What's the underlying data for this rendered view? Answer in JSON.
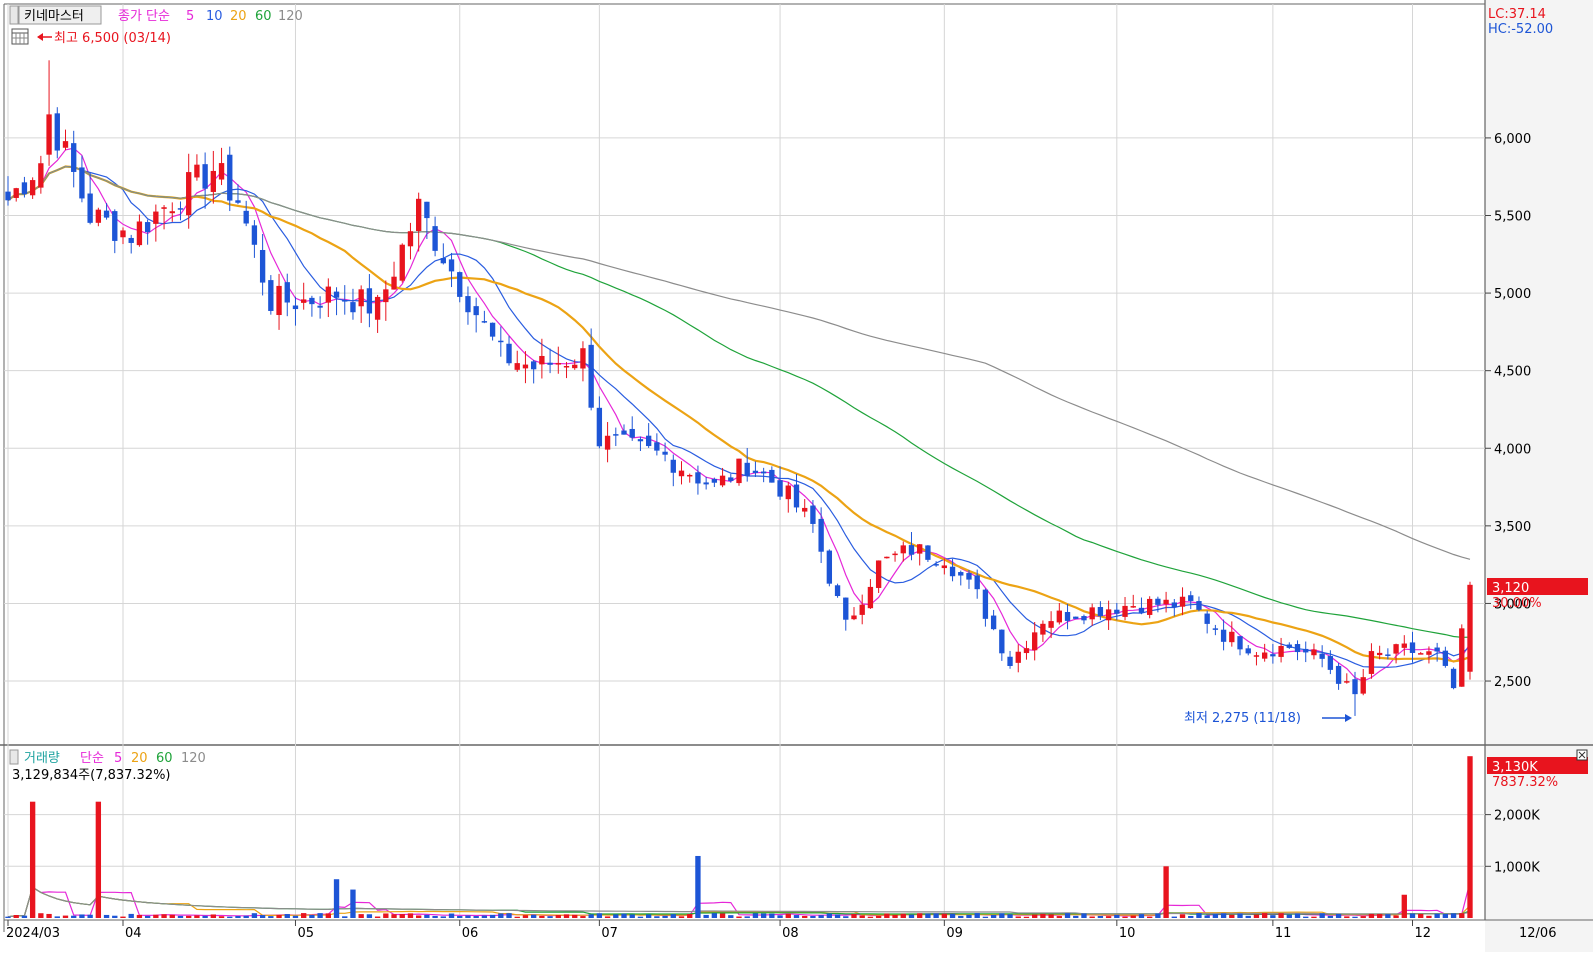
{
  "header": {
    "tab_label": "키네마스터",
    "ma_title": "종가 단순",
    "ma_periods": [
      "5",
      "10",
      "20",
      "60",
      "120"
    ],
    "lc": "LC:37.14",
    "hc": "HC:-52.00",
    "high_note": "최고 6,500 (03/14)",
    "low_note": "최저 2,275 (11/18)"
  },
  "volume_header": {
    "title": "거래량",
    "ma_title": "단순",
    "ma_periods": [
      "5",
      "20",
      "60",
      "120"
    ],
    "value_text": "3,129,834주(7,837.32%)"
  },
  "badges": {
    "price": "3,120",
    "price_pct": "30.00%",
    "volume": "3,130K",
    "volume_pct": "7837.32%"
  },
  "colors": {
    "up": "#e8141e",
    "down": "#1d55d6",
    "ma5": "#e628d8",
    "ma10": "#2a5de0",
    "ma20": "#eca314",
    "ma60": "#1fa33a",
    "ma120": "#8c8c8c",
    "grid": "#d6d6d6",
    "axis": "#444444"
  },
  "chart_data": [
    {
      "type": "candlestick",
      "title": "종가 단순",
      "y_ticks": [
        2500,
        3000,
        3500,
        4000,
        4500,
        5000,
        5500,
        6000
      ],
      "y_tick_labels": [
        "2,500",
        "3,000",
        "3,500",
        "4,000",
        "4,500",
        "5,000",
        "5,500",
        "6,000"
      ],
      "ylim": [
        2120,
        6850
      ],
      "x_tick_labels": [
        "2024/03",
        "04",
        "05",
        "06",
        "07",
        "08",
        "09",
        "10",
        "11",
        "12"
      ],
      "x_end_label": "12/06",
      "grid": true,
      "candle_keypoints": [
        [
          0,
          5600
        ],
        [
          4,
          5850
        ],
        [
          5,
          6150
        ],
        [
          10,
          5500
        ],
        [
          15,
          5380
        ],
        [
          20,
          5600
        ],
        [
          25,
          5800
        ],
        [
          28,
          5600
        ],
        [
          32,
          4950
        ],
        [
          36,
          4950
        ],
        [
          40,
          5000
        ],
        [
          45,
          4900
        ],
        [
          50,
          5550
        ],
        [
          54,
          5150
        ],
        [
          60,
          4600
        ],
        [
          64,
          4520
        ],
        [
          70,
          4600
        ],
        [
          72,
          4050
        ],
        [
          80,
          3950
        ],
        [
          86,
          3750
        ],
        [
          90,
          3900
        ],
        [
          94,
          3750
        ],
        [
          98,
          3500
        ],
        [
          102,
          2850
        ],
        [
          106,
          3250
        ],
        [
          110,
          3350
        ],
        [
          114,
          3300
        ],
        [
          118,
          3050
        ],
        [
          122,
          2620
        ],
        [
          126,
          2900
        ],
        [
          132,
          2960
        ],
        [
          138,
          3000
        ],
        [
          144,
          2990
        ],
        [
          148,
          2800
        ],
        [
          152,
          2700
        ],
        [
          156,
          2720
        ],
        [
          160,
          2640
        ],
        [
          164,
          2400
        ],
        [
          166,
          2650
        ],
        [
          170,
          2700
        ],
        [
          174,
          2660
        ],
        [
          176,
          2450
        ],
        [
          178,
          3120
        ]
      ],
      "series": [
        {
          "name": "5",
          "values": "simple moving average of close"
        },
        {
          "name": "10",
          "values": "simple moving average of close"
        },
        {
          "name": "20",
          "values": "simple moving average of close"
        },
        {
          "name": "60",
          "values": "simple moving average of close"
        },
        {
          "name": "120",
          "values": "simple moving average of close"
        }
      ],
      "annotations": [
        {
          "text": "최고 6,500 (03/14)",
          "value": 6500
        },
        {
          "text": "최저 2,275 (11/18)",
          "value": 2275
        }
      ],
      "last_close": 3120,
      "last_change_pct": 30.0
    },
    {
      "type": "bar",
      "title": "거래량",
      "y_ticks": [
        1000,
        2000
      ],
      "y_tick_labels": [
        "1,000K",
        "2,000K"
      ],
      "ylim": [
        0,
        3250
      ],
      "spikes": [
        [
          3,
          2250
        ],
        [
          11,
          2250
        ],
        [
          40,
          750
        ],
        [
          42,
          550
        ],
        [
          84,
          1200
        ],
        [
          141,
          1000
        ],
        [
          170,
          450
        ],
        [
          178,
          3130
        ]
      ],
      "base_volume": 60,
      "last_volume": 3130
    }
  ]
}
